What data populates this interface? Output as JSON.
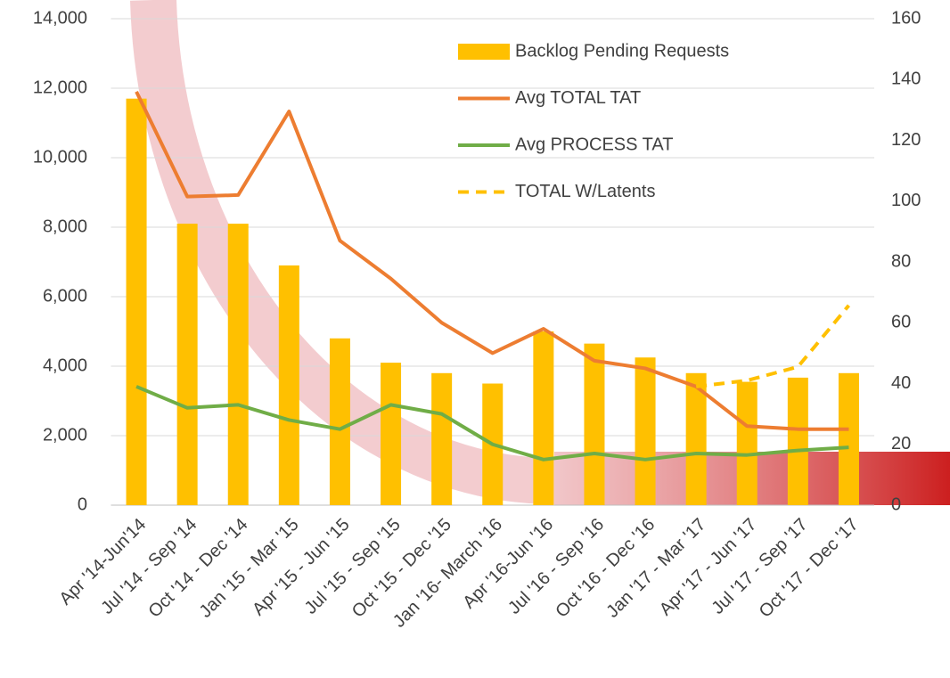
{
  "chart_data": {
    "type": "bar-line",
    "categories": [
      "Apr '14-Jun'14",
      "Jul '14 - Sep '14",
      "Oct '14 - Dec '14",
      "Jan '15 - Mar '15",
      "Apr '15 - Jun '15",
      "Jul '15 - Sep '15",
      "Oct '15 - Dec '15",
      "Jan '16- March '16",
      "Apr '16-Jun '16",
      "Jul '16 - Sep '16",
      "Oct '16 - Dec '16",
      "Jan '17 - Mar '17",
      "Apr '17 - Jun '17",
      "Jul '17 - Sep '17",
      "Oct '17 - Dec '17"
    ],
    "series": [
      {
        "name": "Backlog Pending Requests",
        "type": "bar",
        "color": "#ffc000",
        "values": [
          11700,
          8100,
          8100,
          6900,
          4800,
          4100,
          3800,
          3500,
          5000,
          4650,
          4250,
          3800,
          3550,
          3670,
          3800
        ]
      },
      {
        "name": "Avg TOTAL TAT",
        "type": "line",
        "axis": "y2",
        "color": "#ed7d31",
        "values": [
          136,
          101.5,
          102,
          129.5,
          87,
          74.5,
          60,
          50,
          58,
          47.5,
          45,
          39,
          26,
          25,
          25
        ]
      },
      {
        "name": "Avg PROCESS TAT",
        "type": "line",
        "axis": "y2",
        "color": "#70ad47",
        "values": [
          39,
          32,
          33,
          28,
          25,
          33,
          30,
          20,
          15,
          17,
          15,
          17,
          16.5,
          18,
          19
        ]
      },
      {
        "name": "TOTAL W/Latents",
        "type": "line",
        "dashed": true,
        "axis": "y2",
        "color": "#ffc000",
        "values": [
          null,
          null,
          null,
          null,
          null,
          null,
          null,
          null,
          null,
          null,
          null,
          39,
          41,
          45.5,
          65.7
        ]
      }
    ],
    "ylim": [
      0,
      14000
    ],
    "yticks": [
      {
        "value": 0,
        "label": "0"
      },
      {
        "value": 2000,
        "label": "2,000"
      },
      {
        "value": 4000,
        "label": "4,000"
      },
      {
        "value": 6000,
        "label": "6,000"
      },
      {
        "value": 8000,
        "label": "8,000"
      },
      {
        "value": 10000,
        "label": "10,000"
      },
      {
        "value": 12000,
        "label": "12,000"
      },
      {
        "value": 14000,
        "label": "14,000"
      }
    ],
    "y2lim": [
      0,
      160
    ],
    "y2ticks": [
      0,
      20,
      40,
      60,
      80,
      100,
      120,
      140,
      160
    ],
    "grid": true
  }
}
